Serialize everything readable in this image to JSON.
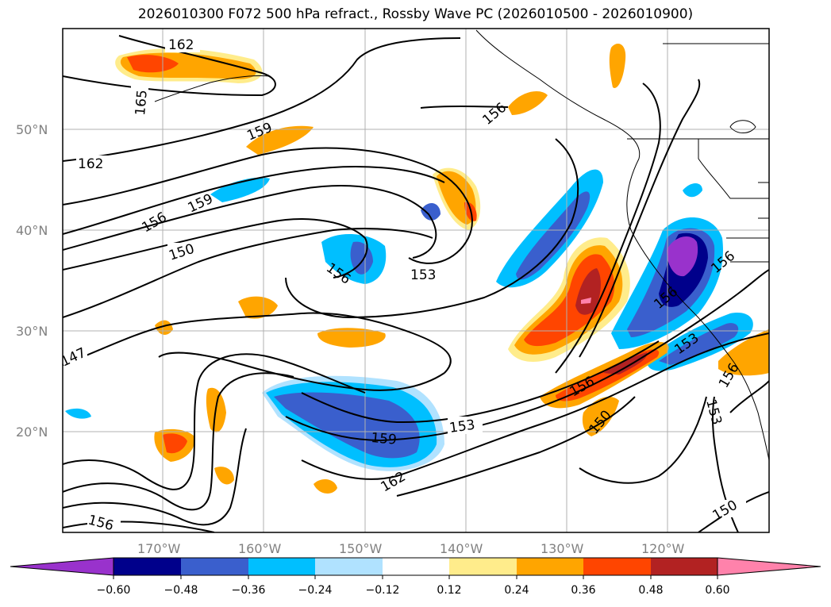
{
  "title": "2026010300 F072 500 hPa refract., Rossby Wave PC (2026010500 - 2026010900)",
  "map": {
    "lat_labels": [
      "50°N",
      "40°N",
      "30°N",
      "20°N"
    ],
    "lon_labels": [
      "170°W",
      "160°W",
      "150°W",
      "140°W",
      "130°W",
      "120°W"
    ],
    "contour_labels": [
      "162",
      "165",
      "159",
      "162",
      "159",
      "156",
      "150",
      "156",
      "153",
      "156",
      "147",
      "156",
      "159",
      "162",
      "153",
      "156",
      "150",
      "156",
      "153",
      "156",
      "153",
      "150",
      "156"
    ],
    "colors": {
      "neg_060": "#9932cc",
      "neg_048": "#00008b",
      "neg_036": "#3a5fcd",
      "neg_024": "#00bfff",
      "neg_012": "#b0e2ff",
      "pos_012": "#ffec8b",
      "pos_024": "#ffa500",
      "pos_036": "#ff4500",
      "pos_048": "#b22222",
      "pos_060": "#ff82ab"
    }
  },
  "colorbar": {
    "ticks": [
      "−0.60",
      "−0.48",
      "−0.36",
      "−0.24",
      "−0.12",
      "0.12",
      "0.24",
      "0.36",
      "0.48",
      "0.60"
    ],
    "colors": [
      "#9932cc",
      "#00008b",
      "#3a5fcd",
      "#00bfff",
      "#b0e2ff",
      "#ffffff",
      "#ffec8b",
      "#ffa500",
      "#ff4500",
      "#b22222",
      "#ff82ab"
    ]
  }
}
